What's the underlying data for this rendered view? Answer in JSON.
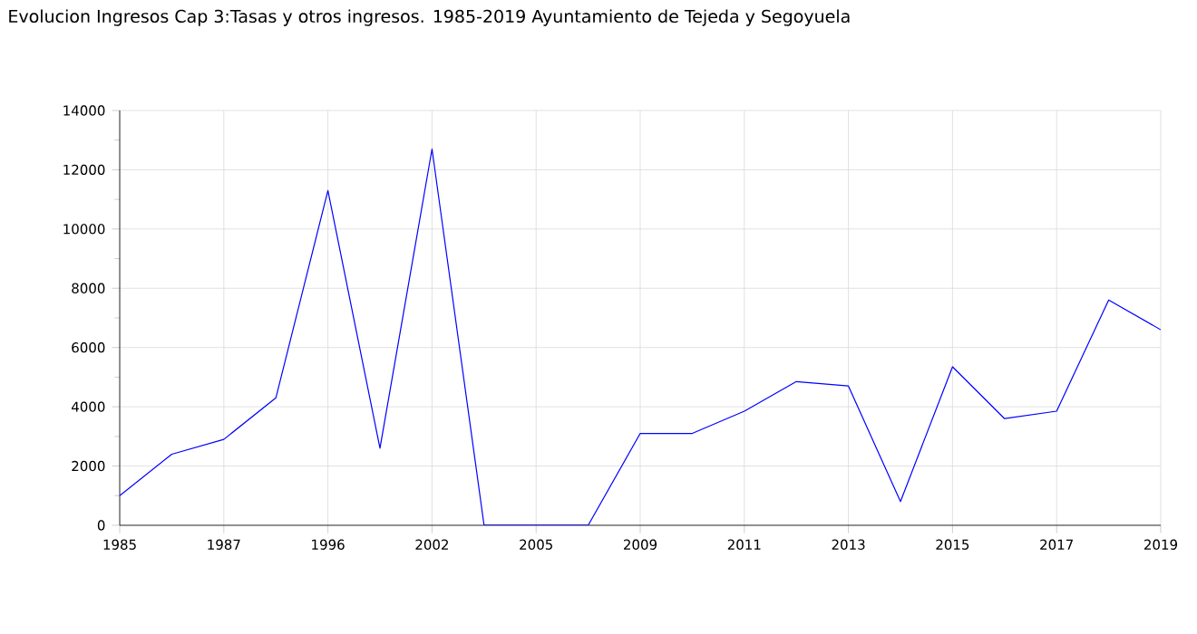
{
  "chart_data": {
    "type": "line",
    "title": "Evolucion Ingresos Cap 3:Tasas y otros ingresos. 1985-2019 Ayuntamiento de Tejeda y Segoyuela",
    "categories": [
      "1985",
      null,
      "1987",
      null,
      "1996",
      null,
      "2002",
      null,
      "2005",
      null,
      "2009",
      null,
      "2011",
      null,
      "2013",
      null,
      "2015",
      null,
      "2017",
      null,
      "2019"
    ],
    "series": [
      {
        "color": "#0000ff",
        "values": [
          1000,
          2400,
          2900,
          4300,
          11300,
          2600,
          12700,
          0,
          0,
          0,
          3100,
          3100,
          3850,
          4850,
          4700,
          800,
          5350,
          3600,
          3850,
          7600,
          6600
        ]
      }
    ],
    "ylim": [
      0,
      14000
    ],
    "yticks": [
      0,
      2000,
      4000,
      6000,
      8000,
      10000,
      12000,
      14000
    ],
    "grid": true,
    "line_style": "solid"
  }
}
